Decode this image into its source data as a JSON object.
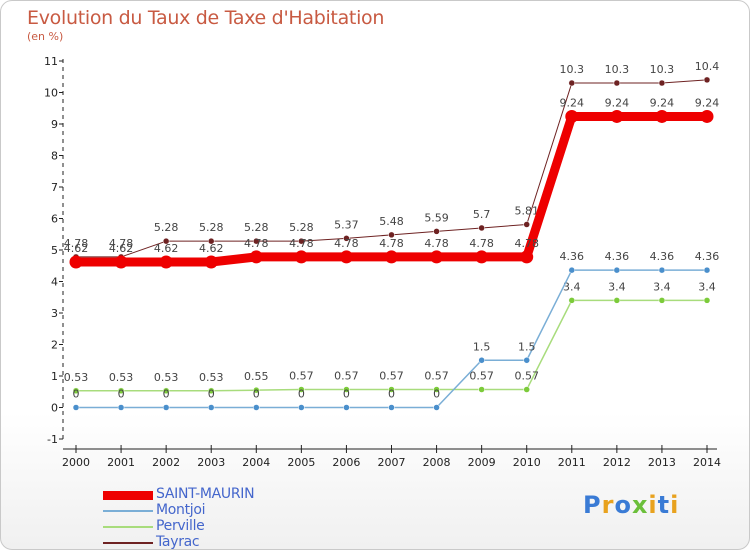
{
  "title": "Evolution du Taux de Taxe d'Habitation",
  "unit_label": "(en %)",
  "logo": {
    "text": "Proxiti",
    "colors": [
      "#3a7bd5",
      "#e8a21e",
      "#3a7bd5",
      "#6bbf3a",
      "#e8a21e",
      "#3a7bd5",
      "#e8a21e"
    ]
  },
  "chart_data": {
    "type": "line",
    "title": "Evolution du Taux de Taxe d'Habitation",
    "ylabel": "(en %)",
    "xlabel": "",
    "x": [
      "2000",
      "2001",
      "2002",
      "2003",
      "2004",
      "2005",
      "2006",
      "2007",
      "2008",
      "2009",
      "2010",
      "2011",
      "2012",
      "2013",
      "2014"
    ],
    "ylim": [
      -1,
      11
    ],
    "yticks": [
      "-1",
      "0",
      "1",
      "2",
      "3",
      "4",
      "5",
      "6",
      "7",
      "8",
      "9",
      "10",
      "11"
    ],
    "grid": false,
    "legend": "bottom-left",
    "series": [
      {
        "name": "Tayrac",
        "color": "#6e2222",
        "width": 1,
        "dot": "#6e2222",
        "values": [
          4.78,
          4.78,
          5.28,
          5.28,
          5.28,
          5.28,
          5.37,
          5.48,
          5.59,
          5.7,
          5.81,
          10.3,
          10.3,
          10.3,
          10.4
        ],
        "labels": [
          "4.78",
          "4.78",
          "5.28",
          "5.28",
          "5.28",
          "5.28",
          "5.37",
          "5.48",
          "5.59",
          "5.7",
          "5.81",
          "10.3",
          "10.3",
          "10.3",
          "10.4"
        ]
      },
      {
        "name": "Perville",
        "color": "#a8dc7c",
        "width": 1.5,
        "dot": "#7ccb3a",
        "values": [
          0.53,
          0.53,
          0.53,
          0.53,
          0.55,
          0.57,
          0.57,
          0.57,
          0.57,
          0.57,
          0.57,
          3.4,
          3.4,
          3.4,
          3.4
        ],
        "labels": [
          "0.53",
          "0.53",
          "0.53",
          "0.53",
          "0.55",
          "0.57",
          "0.57",
          "0.57",
          "0.57",
          "0.57",
          "0.57",
          "3.4",
          "3.4",
          "3.4",
          "3.4"
        ]
      },
      {
        "name": "Montjoi",
        "color": "#7aaed6",
        "width": 1.5,
        "dot": "#4a8fcc",
        "values": [
          0,
          0,
          0,
          0,
          0,
          0,
          0,
          0,
          0,
          1.5,
          1.5,
          4.36,
          4.36,
          4.36,
          4.36
        ],
        "labels": [
          "0",
          "0",
          "0",
          "0",
          "0",
          "0",
          "0",
          "0",
          "0",
          "1.5",
          "1.5",
          "4.36",
          "4.36",
          "4.36",
          "4.36"
        ]
      },
      {
        "name": "SAINT-MAURIN",
        "color": "#ee0000",
        "width": 9,
        "dot": "#ee0000",
        "values": [
          4.62,
          4.62,
          4.62,
          4.62,
          4.78,
          4.78,
          4.78,
          4.78,
          4.78,
          4.78,
          4.78,
          9.24,
          9.24,
          9.24,
          9.24
        ],
        "labels": [
          "4.62",
          "4.62",
          "4.62",
          "4.62",
          "4.78",
          "4.78",
          "4.78",
          "4.78",
          "4.78",
          "4.78",
          "4.78",
          "9.24",
          "9.24",
          "9.24",
          "9.24"
        ]
      }
    ],
    "legend_order": [
      "SAINT-MAURIN",
      "Montjoi",
      "Perville",
      "Tayrac"
    ]
  }
}
